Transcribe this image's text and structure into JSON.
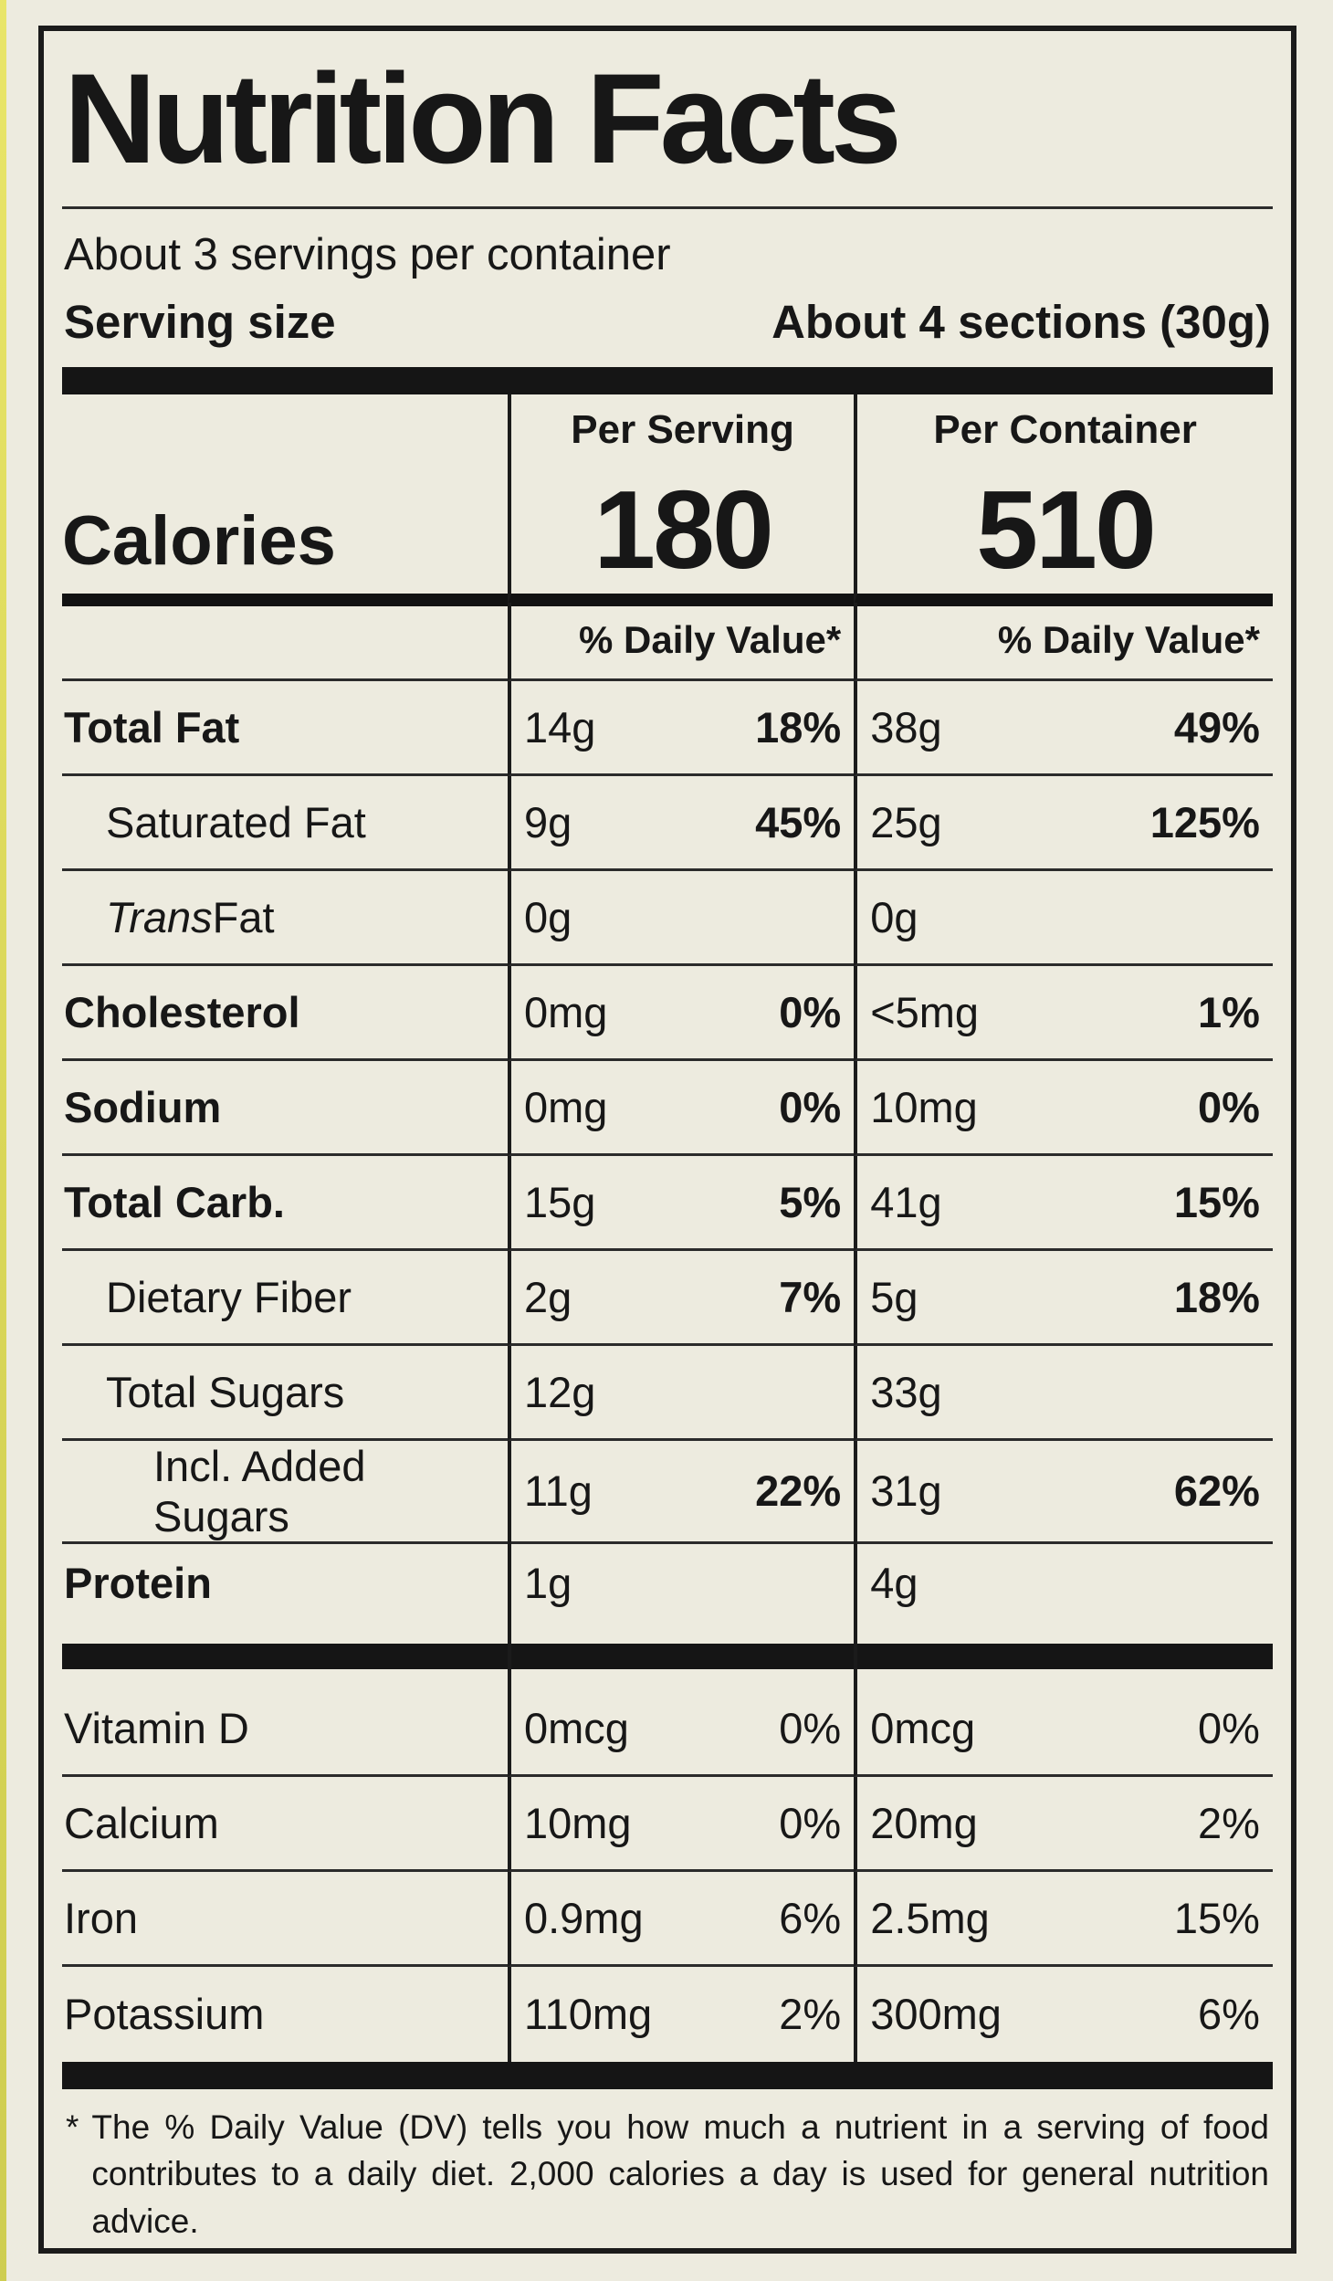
{
  "page": {
    "background": "#edebdf",
    "ink": "#171717"
  },
  "label": {
    "title": "Nutrition Facts",
    "servings_per_container": "About 3 servings per container",
    "serving_size": {
      "label": "Serving size",
      "value": "About 4 sections (30g)"
    },
    "columns": {
      "serving": "Per Serving",
      "container": "Per Container",
      "daily_value_header": "% Daily Value*"
    },
    "calories": {
      "label": "Calories",
      "per_serving": "180",
      "per_container": "510"
    },
    "nutrients": [
      {
        "name": "Total Fat",
        "serving_amount": "14g",
        "serving_dv": "18%",
        "container_amount": "38g",
        "container_dv": "49%"
      },
      {
        "name": "Saturated Fat",
        "serving_amount": "9g",
        "serving_dv": "45%",
        "container_amount": "25g",
        "container_dv": "125%"
      },
      {
        "name_italic_prefix": "Trans",
        "name": " Fat",
        "serving_amount": "0g",
        "serving_dv": "",
        "container_amount": "0g",
        "container_dv": ""
      },
      {
        "name": "Cholesterol",
        "serving_amount": "0mg",
        "serving_dv": "0%",
        "container_amount": "<5mg",
        "container_dv": "1%"
      },
      {
        "name": "Sodium",
        "serving_amount": "0mg",
        "serving_dv": "0%",
        "container_amount": "10mg",
        "container_dv": "0%"
      },
      {
        "name": "Total Carb.",
        "serving_amount": "15g",
        "serving_dv": "5%",
        "container_amount": "41g",
        "container_dv": "15%"
      },
      {
        "name": "Dietary Fiber",
        "serving_amount": "2g",
        "serving_dv": "7%",
        "container_amount": "5g",
        "container_dv": "18%"
      },
      {
        "name": "Total Sugars",
        "serving_amount": "12g",
        "serving_dv": "",
        "container_amount": "33g",
        "container_dv": ""
      },
      {
        "name": "Incl. Added Sugars",
        "serving_amount": "11g",
        "serving_dv": "22%",
        "container_amount": "31g",
        "container_dv": "62%"
      },
      {
        "name": "Protein",
        "serving_amount": "1g",
        "serving_dv": "",
        "container_amount": "4g",
        "container_dv": ""
      }
    ],
    "micronutrients": [
      {
        "name": "Vitamin D",
        "serving_amount": "0mcg",
        "serving_dv": "0%",
        "container_amount": "0mcg",
        "container_dv": "0%"
      },
      {
        "name": "Calcium",
        "serving_amount": "10mg",
        "serving_dv": "0%",
        "container_amount": "20mg",
        "container_dv": "2%"
      },
      {
        "name": "Iron",
        "serving_amount": "0.9mg",
        "serving_dv": "6%",
        "container_amount": "2.5mg",
        "container_dv": "15%"
      },
      {
        "name": "Potassium",
        "serving_amount": "110mg",
        "serving_dv": "2%",
        "container_amount": "300mg",
        "container_dv": "6%"
      }
    ],
    "footnote_marker": "*",
    "footnote": "The % Daily Value (DV) tells you how much a nutrient in a serving of food contributes to a daily diet. 2,000 calories a day is used for general nutrition advice."
  }
}
